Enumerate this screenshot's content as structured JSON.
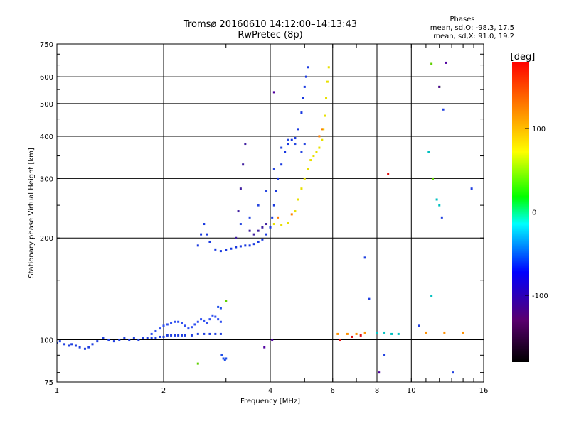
{
  "chart_data": {
    "type": "scatter",
    "title": "Tromsø 20160610 14:12:00–14:13:43",
    "subtitle": "RwPretec (8p)",
    "xlabel": "Frequency [MHz]",
    "ylabel": "Stationary phase Virtual Height [km]",
    "x_scale": "log",
    "y_scale": "log",
    "xlim": [
      1,
      16
    ],
    "ylim": [
      75,
      750
    ],
    "x_ticks": [
      1,
      2,
      4,
      6,
      8,
      10,
      16
    ],
    "x_tick_labels": [
      "1",
      "2",
      "4",
      "6",
      "8",
      "10",
      "16"
    ],
    "y_ticks": [
      75,
      100,
      200,
      300,
      400,
      500,
      600,
      750
    ],
    "y_tick_labels": [
      "75",
      "100",
      "200",
      "300",
      "400",
      "500",
      "600",
      "750"
    ],
    "grid": true,
    "legend_title": "Phases",
    "legend_lines": [
      "mean, sd,O: -98.3, 17.5",
      "mean, sd,X:  91.0, 19.2"
    ],
    "colorbar": {
      "label": "[deg]",
      "range": [
        -180,
        180
      ],
      "ticks": [
        100,
        0,
        -100
      ],
      "tick_labels": [
        "100",
        "0",
        "-100"
      ],
      "colormap": [
        "#000000",
        "#5a006e",
        "#0000ff",
        "#00ffff",
        "#00ff00",
        "#ffff00",
        "#ff8000",
        "#ff0000"
      ]
    },
    "series": [
      {
        "color": "#2040e0",
        "points": [
          [
            1.0,
            98
          ],
          [
            1.02,
            99
          ],
          [
            1.05,
            97
          ],
          [
            1.08,
            96
          ],
          [
            1.1,
            97
          ],
          [
            1.13,
            96
          ],
          [
            1.16,
            95
          ],
          [
            1.2,
            94
          ],
          [
            1.23,
            95
          ],
          [
            1.26,
            97
          ],
          [
            1.3,
            99
          ],
          [
            1.35,
            101
          ],
          [
            1.4,
            100
          ],
          [
            1.45,
            99
          ],
          [
            1.5,
            100
          ],
          [
            1.55,
            101
          ],
          [
            1.6,
            100
          ],
          [
            1.65,
            101
          ],
          [
            1.7,
            100
          ],
          [
            1.75,
            101
          ],
          [
            1.8,
            101
          ],
          [
            1.85,
            101
          ],
          [
            1.9,
            101
          ],
          [
            1.95,
            102
          ],
          [
            2.0,
            102
          ],
          [
            2.05,
            103
          ],
          [
            2.1,
            103
          ],
          [
            2.15,
            103
          ],
          [
            2.2,
            103
          ],
          [
            2.25,
            103
          ],
          [
            2.3,
            103
          ],
          [
            2.4,
            103
          ],
          [
            2.5,
            104
          ],
          [
            2.6,
            104
          ],
          [
            2.7,
            104
          ],
          [
            2.8,
            104
          ],
          [
            2.9,
            104
          ]
        ]
      },
      {
        "color": "#3050f0",
        "points": [
          [
            1.85,
            104
          ],
          [
            1.9,
            106
          ],
          [
            1.95,
            108
          ],
          [
            2.0,
            110
          ],
          [
            2.05,
            111
          ],
          [
            2.1,
            112
          ],
          [
            2.15,
            113
          ],
          [
            2.2,
            113
          ],
          [
            2.25,
            112
          ],
          [
            2.3,
            110
          ],
          [
            2.35,
            108
          ],
          [
            2.4,
            109
          ],
          [
            2.45,
            111
          ],
          [
            2.5,
            113
          ],
          [
            2.55,
            115
          ],
          [
            2.6,
            114
          ],
          [
            2.65,
            112
          ],
          [
            2.7,
            115
          ],
          [
            2.75,
            118
          ],
          [
            2.8,
            117
          ],
          [
            2.85,
            115
          ],
          [
            2.9,
            113
          ]
        ]
      },
      {
        "color": "#2050e8",
        "points": [
          [
            2.85,
            125
          ],
          [
            2.9,
            124
          ],
          [
            2.92,
            90
          ],
          [
            2.95,
            88
          ],
          [
            2.98,
            87
          ],
          [
            3.0,
            88
          ]
        ]
      },
      {
        "color": "#1838e0",
        "points": [
          [
            2.5,
            190
          ],
          [
            2.55,
            205
          ],
          [
            2.6,
            220
          ],
          [
            2.65,
            205
          ],
          [
            2.7,
            195
          ],
          [
            2.8,
            185
          ],
          [
            2.9,
            183
          ],
          [
            3.0,
            184
          ],
          [
            3.1,
            186
          ],
          [
            3.2,
            188
          ],
          [
            3.3,
            189
          ],
          [
            3.4,
            190
          ],
          [
            3.5,
            190
          ],
          [
            3.6,
            192
          ],
          [
            3.7,
            195
          ],
          [
            3.8,
            198
          ],
          [
            3.9,
            205
          ],
          [
            4.0,
            215
          ],
          [
            4.05,
            230
          ],
          [
            4.1,
            250
          ],
          [
            4.15,
            275
          ],
          [
            4.2,
            300
          ],
          [
            4.3,
            330
          ],
          [
            4.4,
            360
          ],
          [
            4.5,
            380
          ],
          [
            4.6,
            390
          ],
          [
            4.7,
            395
          ],
          [
            4.8,
            420
          ],
          [
            4.9,
            470
          ],
          [
            4.95,
            520
          ],
          [
            5.0,
            560
          ],
          [
            5.05,
            600
          ],
          [
            5.1,
            640
          ]
        ]
      },
      {
        "color": "#4020a0",
        "points": [
          [
            3.2,
            200
          ],
          [
            3.25,
            240
          ],
          [
            3.3,
            280
          ],
          [
            3.35,
            330
          ],
          [
            3.4,
            380
          ],
          [
            3.5,
            210
          ],
          [
            3.6,
            205
          ],
          [
            3.7,
            210
          ],
          [
            3.8,
            215
          ],
          [
            3.9,
            220
          ]
        ]
      },
      {
        "color": "#2848e0",
        "points": [
          [
            3.3,
            220
          ],
          [
            3.5,
            230
          ],
          [
            3.7,
            250
          ],
          [
            3.9,
            275
          ],
          [
            4.1,
            320
          ],
          [
            4.3,
            370
          ],
          [
            4.5,
            390
          ],
          [
            4.7,
            380
          ],
          [
            4.9,
            360
          ],
          [
            5.0,
            380
          ]
        ]
      },
      {
        "color": "#e8e000",
        "points": [
          [
            4.1,
            220
          ],
          [
            4.3,
            218
          ],
          [
            4.5,
            222
          ],
          [
            4.7,
            240
          ],
          [
            4.8,
            260
          ],
          [
            4.9,
            280
          ],
          [
            5.0,
            300
          ],
          [
            5.1,
            320
          ],
          [
            5.2,
            340
          ],
          [
            5.3,
            350
          ],
          [
            5.4,
            360
          ],
          [
            5.5,
            370
          ],
          [
            5.6,
            390
          ],
          [
            5.65,
            420
          ],
          [
            5.7,
            460
          ],
          [
            5.75,
            520
          ],
          [
            5.8,
            580
          ],
          [
            5.85,
            640
          ]
        ]
      },
      {
        "color": "#ff8000",
        "points": [
          [
            4.2,
            230
          ],
          [
            4.6,
            235
          ],
          [
            5.5,
            400
          ],
          [
            5.6,
            420
          ]
        ]
      },
      {
        "color": "#ff9000",
        "points": [
          [
            6.2,
            104
          ],
          [
            6.6,
            104
          ],
          [
            7.0,
            104
          ],
          [
            7.4,
            105
          ],
          [
            11.0,
            105
          ],
          [
            12.4,
            105
          ],
          [
            14.0,
            105
          ]
        ]
      },
      {
        "color": "#00c0c0",
        "points": [
          [
            8.0,
            105
          ],
          [
            8.4,
            105
          ],
          [
            8.8,
            104
          ],
          [
            9.2,
            104
          ],
          [
            12.0,
            250
          ],
          [
            11.2,
            360
          ],
          [
            11.4,
            135
          ],
          [
            11.8,
            260
          ]
        ]
      },
      {
        "color": "#e01010",
        "points": [
          [
            6.3,
            100
          ],
          [
            6.8,
            102
          ],
          [
            8.6,
            310
          ],
          [
            7.2,
            103
          ]
        ]
      },
      {
        "color": "#2040e0",
        "points": [
          [
            7.4,
            175
          ],
          [
            7.6,
            132
          ],
          [
            8.4,
            90
          ],
          [
            10.5,
            110
          ],
          [
            12.3,
            480
          ],
          [
            12.2,
            230
          ],
          [
            13.1,
            80
          ],
          [
            14.8,
            280
          ]
        ]
      },
      {
        "color": "#60d000",
        "points": [
          [
            11.4,
            655
          ],
          [
            12.0,
            560
          ],
          [
            11.5,
            300
          ],
          [
            3.0,
            130
          ],
          [
            2.5,
            85
          ]
        ]
      },
      {
        "color": "#5000a0",
        "points": [
          [
            12.5,
            660
          ],
          [
            12.0,
            560
          ],
          [
            4.1,
            540
          ],
          [
            4.05,
            100
          ],
          [
            3.85,
            95
          ],
          [
            8.1,
            80
          ]
        ]
      }
    ]
  }
}
